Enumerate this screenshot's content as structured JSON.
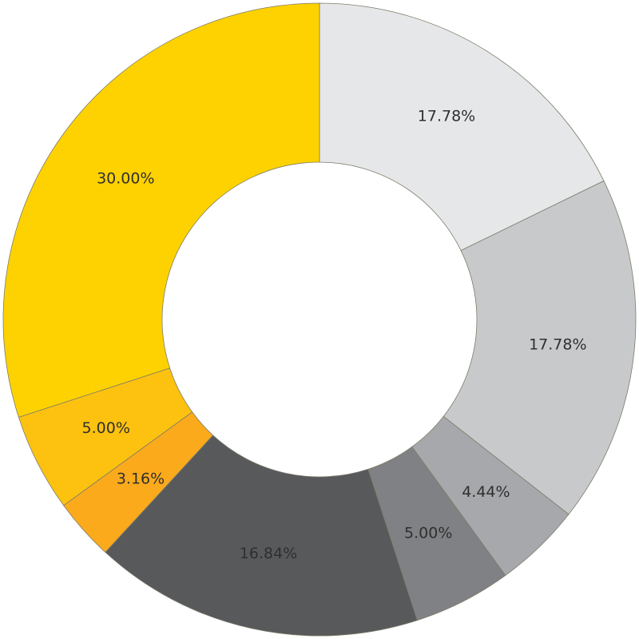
{
  "chart_data": {
    "type": "pie",
    "variant": "donut",
    "start": "12 o'clock",
    "direction": "clockwise",
    "legend": "none",
    "slices": [
      {
        "label": "17.78%",
        "value": 17.78,
        "color": "#e6e7e8"
      },
      {
        "label": "17.78%",
        "value": 17.78,
        "color": "#c8c9cb"
      },
      {
        "label": "4.44%",
        "value": 4.44,
        "color": "#a7a8ab"
      },
      {
        "label": "5.00%",
        "value": 5.0,
        "color": "#808184"
      },
      {
        "label": "16.84%",
        "value": 16.84,
        "color": "#58595b"
      },
      {
        "label": "3.16%",
        "value": 3.16,
        "color": "#fbaa1c"
      },
      {
        "label": "5.00%",
        "value": 5.0,
        "color": "#fdc210"
      },
      {
        "label": "30.00%",
        "value": 30.0,
        "color": "#fed200"
      }
    ],
    "slice_border_color": "#7d7c6a"
  }
}
